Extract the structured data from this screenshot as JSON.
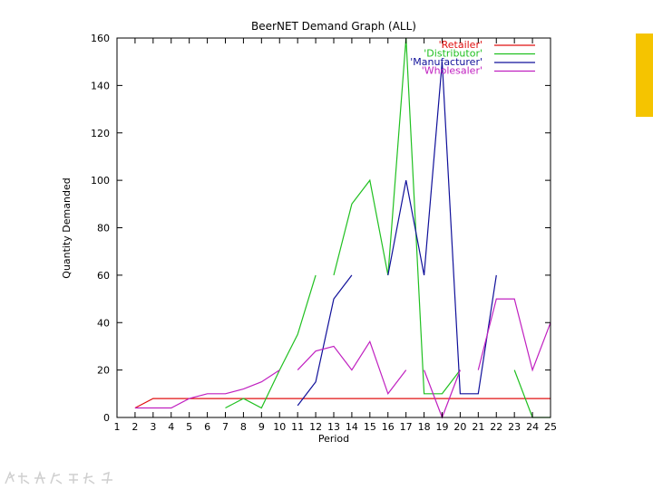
{
  "accent_color": "#f5c400",
  "chart_data": {
    "type": "line",
    "title": "BeerNET Demand Graph (ALL)",
    "xlabel": "Period",
    "ylabel": "Quantity Demanded",
    "xlim": [
      1,
      25
    ],
    "ylim": [
      0,
      160
    ],
    "xticks": [
      1,
      2,
      3,
      4,
      5,
      6,
      7,
      8,
      9,
      10,
      11,
      12,
      13,
      14,
      15,
      16,
      17,
      18,
      19,
      20,
      21,
      22,
      23,
      24,
      25
    ],
    "yticks": [
      0,
      20,
      40,
      60,
      80,
      100,
      120,
      140,
      160
    ],
    "grid": false,
    "legend_position": "top-right",
    "series": [
      {
        "name": "'Retailer'",
        "color": "#e01010",
        "points": [
          [
            2,
            4
          ],
          [
            3,
            8
          ],
          [
            4,
            8
          ],
          [
            5,
            8
          ],
          [
            6,
            8
          ],
          [
            7,
            8
          ],
          [
            8,
            8
          ],
          [
            9,
            8
          ],
          [
            10,
            8
          ],
          [
            11,
            8
          ],
          [
            12,
            8
          ],
          [
            13,
            8
          ],
          [
            14,
            8
          ],
          [
            15,
            8
          ],
          [
            16,
            8
          ],
          [
            17,
            8
          ],
          [
            18,
            8
          ],
          [
            19,
            8
          ],
          [
            20,
            8
          ],
          [
            21,
            8
          ],
          [
            22,
            8
          ],
          [
            23,
            8
          ],
          [
            24,
            8
          ],
          [
            25,
            8
          ]
        ]
      },
      {
        "name": "'Distributor'",
        "color": "#20c020",
        "points": [
          [
            7,
            4
          ],
          [
            8,
            8
          ],
          [
            9,
            4
          ],
          [
            10,
            20
          ],
          [
            11,
            35
          ],
          [
            12,
            60
          ],
          null,
          [
            13,
            60
          ],
          [
            14,
            90
          ],
          [
            15,
            100
          ],
          [
            16,
            60
          ],
          [
            17,
            160
          ],
          [
            18,
            10
          ],
          [
            19,
            10
          ],
          [
            20,
            20
          ],
          null,
          [
            23,
            20
          ],
          [
            24,
            0
          ],
          [
            25,
            0
          ]
        ]
      },
      {
        "name": "'Manufacturer'",
        "color": "#10109a",
        "points": [
          [
            11,
            5
          ],
          [
            12,
            15
          ],
          [
            13,
            50
          ],
          [
            14,
            60
          ],
          null,
          [
            16,
            60
          ],
          [
            17,
            100
          ],
          [
            18,
            60
          ],
          [
            19,
            150
          ],
          [
            20,
            10
          ],
          [
            21,
            10
          ],
          [
            22,
            60
          ]
        ]
      },
      {
        "name": "'Wholesaler'",
        "color": "#c020c0",
        "points": [
          [
            2,
            4
          ],
          [
            3,
            4
          ],
          [
            4,
            4
          ],
          [
            5,
            8
          ],
          [
            6,
            10
          ],
          [
            7,
            10
          ],
          [
            8,
            12
          ],
          [
            9,
            15
          ],
          [
            10,
            20
          ],
          null,
          [
            11,
            20
          ],
          [
            12,
            28
          ],
          [
            13,
            30
          ],
          [
            14,
            20
          ],
          [
            15,
            32
          ],
          [
            16,
            10
          ],
          [
            17,
            20
          ],
          null,
          [
            18,
            20
          ],
          [
            19,
            0
          ],
          [
            20,
            20
          ],
          null,
          [
            21,
            20
          ],
          [
            22,
            50
          ],
          [
            23,
            50
          ],
          [
            24,
            20
          ],
          [
            25,
            40
          ]
        ]
      }
    ]
  }
}
